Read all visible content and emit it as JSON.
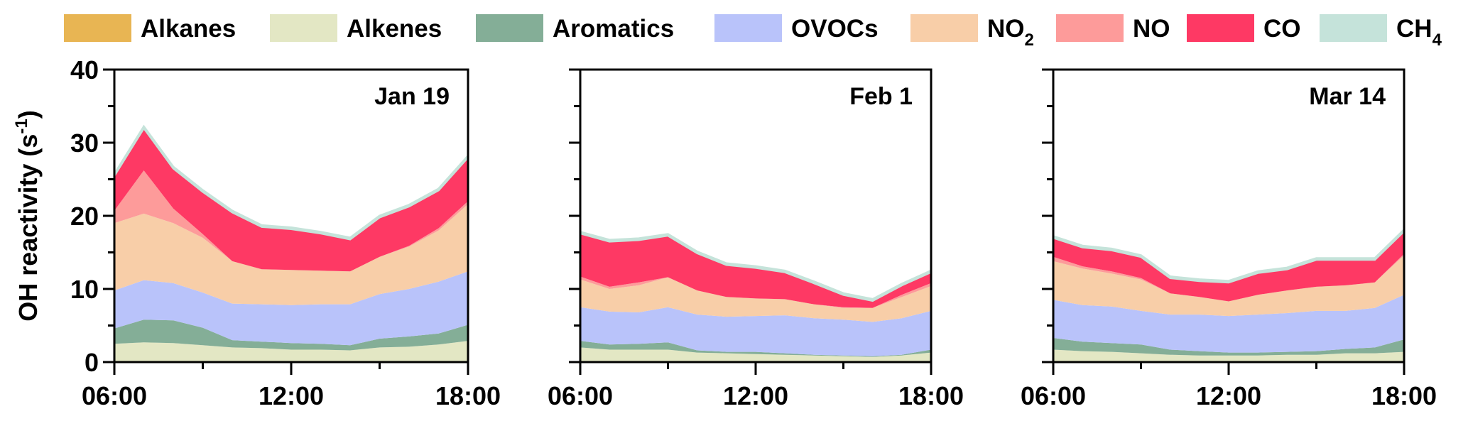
{
  "chart_data": {
    "type": "area",
    "stacked": true,
    "ylabel": {
      "main": "OH reactivity (s",
      "sup": "-1",
      "close": ")"
    },
    "ylim": [
      0,
      40
    ],
    "yticks": [
      "0",
      "10",
      "20",
      "30",
      "40"
    ],
    "xticks": [
      "06:00",
      "12:00",
      "18:00"
    ],
    "x_hours": [
      6,
      7,
      8,
      9,
      10,
      11,
      12,
      13,
      14,
      15,
      16,
      17,
      18
    ],
    "legend": [
      {
        "key": "alkanes",
        "label": "Alkanes",
        "sub": "",
        "color": "#E8B553"
      },
      {
        "key": "alkenes",
        "label": "Alkenes",
        "sub": "",
        "color": "#E3E7C4"
      },
      {
        "key": "aromatics",
        "label": "Aromatics",
        "sub": "",
        "color": "#84AE97"
      },
      {
        "key": "ovocs",
        "label": "OVOCs",
        "sub": "",
        "color": "#B9C3FA"
      },
      {
        "key": "no2",
        "label": "NO",
        "sub": "2",
        "color": "#F8CEA8"
      },
      {
        "key": "no",
        "label": "NO",
        "sub": "",
        "color": "#FD9B9A"
      },
      {
        "key": "co",
        "label": "CO",
        "sub": "",
        "color": "#FE3964"
      },
      {
        "key": "ch4",
        "label": "CH",
        "sub": "4",
        "color": "#C5E3DA"
      }
    ],
    "panels": [
      {
        "title": "Jan 19",
        "series": {
          "alkanes": [
            0,
            0,
            0,
            0,
            0,
            0,
            0,
            0,
            0,
            0,
            0,
            0,
            0
          ],
          "alkenes": [
            2.5,
            2.7,
            2.6,
            2.3,
            2.0,
            1.9,
            1.7,
            1.7,
            1.6,
            2.0,
            2.1,
            2.4,
            2.9
          ],
          "aromatics": [
            2.1,
            3.1,
            3.1,
            2.4,
            1.0,
            0.9,
            0.9,
            0.8,
            0.7,
            1.2,
            1.4,
            1.5,
            2.2
          ],
          "ovocs": [
            5.2,
            5.4,
            5.1,
            4.8,
            5.0,
            5.1,
            5.2,
            5.4,
            5.6,
            6.1,
            6.5,
            7.1,
            7.3
          ],
          "no2": [
            9.2,
            9.1,
            8.2,
            7.5,
            5.8,
            4.8,
            4.8,
            4.6,
            4.5,
            5.1,
            5.8,
            7.0,
            9.2
          ],
          "no": [
            1.7,
            5.9,
            2.0,
            0.5,
            0,
            0,
            0,
            0,
            0,
            0,
            0.1,
            0.3,
            0.4
          ],
          "co": [
            4.8,
            5.8,
            5.5,
            5.8,
            6.7,
            5.8,
            5.6,
            5.1,
            4.4,
            5.4,
            5.4,
            5.2,
            6.0
          ],
          "ch4": [
            0.2,
            0.2,
            0.2,
            0.2,
            0.2,
            0.2,
            0.2,
            0.2,
            0.2,
            0.2,
            0.2,
            0.2,
            0.2
          ]
        }
      },
      {
        "title": "Feb 1",
        "series": {
          "alkanes": [
            0,
            0,
            0,
            0,
            0,
            0,
            0,
            0,
            0,
            0,
            0,
            0,
            0
          ],
          "alkenes": [
            2.0,
            1.7,
            1.7,
            1.7,
            1.3,
            1.2,
            1.1,
            1.0,
            0.9,
            0.8,
            0.7,
            0.9,
            1.3
          ],
          "aromatics": [
            0.9,
            0.7,
            0.8,
            1.0,
            0.3,
            0.2,
            0.3,
            0.2,
            0.1,
            0.1,
            0.1,
            0.1,
            0.4
          ],
          "ovocs": [
            4.6,
            4.5,
            4.3,
            4.8,
            4.9,
            4.8,
            4.9,
            5.2,
            5.0,
            4.9,
            4.7,
            5.0,
            5.3
          ],
          "no2": [
            3.8,
            3.1,
            3.7,
            4.1,
            3.3,
            2.7,
            2.4,
            2.2,
            1.9,
            1.6,
            1.9,
            2.9,
            3.4
          ],
          "no": [
            0.4,
            0.3,
            0.4,
            0,
            0,
            0,
            0,
            0,
            0,
            0.1,
            0,
            0.3,
            0.4
          ],
          "co": [
            5.9,
            6.2,
            5.8,
            5.7,
            5.1,
            4.4,
            4.2,
            3.7,
            2.9,
            1.7,
            1.0,
            1.3,
            1.5
          ],
          "ch4": [
            0.2,
            0.2,
            0.2,
            0.2,
            0.2,
            0.2,
            0.2,
            0.2,
            0.2,
            0.2,
            0.2,
            0.2,
            0.2
          ]
        }
      },
      {
        "title": "Mar 14",
        "series": {
          "alkanes": [
            0,
            0,
            0,
            0,
            0,
            0,
            0,
            0,
            0,
            0,
            0,
            0,
            0
          ],
          "alkenes": [
            1.7,
            1.5,
            1.4,
            1.2,
            1.0,
            0.9,
            0.9,
            0.9,
            1.0,
            1.0,
            1.2,
            1.2,
            1.4
          ],
          "aromatics": [
            1.6,
            1.3,
            1.2,
            1.2,
            0.7,
            0.6,
            0.4,
            0.4,
            0.4,
            0.5,
            0.6,
            0.8,
            1.7
          ],
          "ovocs": [
            5.2,
            5.0,
            5.0,
            4.6,
            4.8,
            5.0,
            5.0,
            5.2,
            5.3,
            5.5,
            5.2,
            5.4,
            6.1
          ],
          "no2": [
            5.3,
            5.0,
            4.5,
            4.3,
            2.9,
            2.4,
            2.0,
            2.7,
            3.1,
            3.3,
            3.5,
            3.5,
            5.4
          ],
          "no": [
            0.6,
            0.3,
            0.3,
            0.2,
            0,
            0,
            0,
            0,
            0,
            0,
            0,
            0,
            0.2
          ],
          "co": [
            2.6,
            2.6,
            2.9,
            2.9,
            2.1,
            2.2,
            2.6,
            3.0,
            2.9,
            3.7,
            3.5,
            3.1,
            3.1
          ],
          "ch4": [
            0.2,
            0.2,
            0.2,
            0.2,
            0.2,
            0.2,
            0.2,
            0.2,
            0.2,
            0.2,
            0.2,
            0.2,
            0.2
          ]
        }
      }
    ]
  }
}
